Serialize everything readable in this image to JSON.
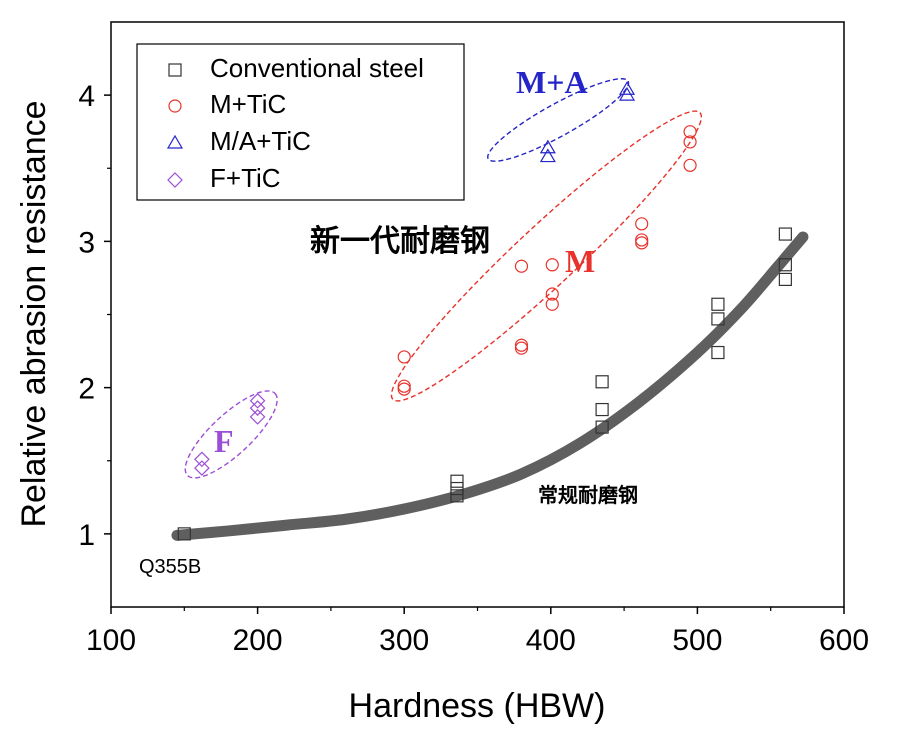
{
  "chart_data": {
    "type": "scatter",
    "xlabel": "Hardness (HBW)",
    "ylabel": "Relative abrasion resistance",
    "xlim": [
      100,
      600
    ],
    "ylim": [
      0.5,
      4.5
    ],
    "xticks": [
      100,
      200,
      300,
      400,
      500,
      600
    ],
    "yticks": [
      1,
      2,
      3,
      4
    ],
    "legend_position": "top-left",
    "series": [
      {
        "name": "Conventional steel",
        "marker": "square",
        "color": "#333333",
        "points": [
          [
            150,
            1.0
          ],
          [
            336,
            1.36
          ],
          [
            336,
            1.31
          ],
          [
            336,
            1.26
          ],
          [
            435,
            2.04
          ],
          [
            435,
            1.85
          ],
          [
            435,
            1.73
          ],
          [
            514,
            2.57
          ],
          [
            514,
            2.47
          ],
          [
            514,
            2.24
          ],
          [
            560,
            3.05
          ],
          [
            560,
            2.84
          ],
          [
            560,
            2.74
          ]
        ]
      },
      {
        "name": "M+TiC",
        "marker": "circle",
        "color": "#e8322b",
        "points": [
          [
            300,
            2.21
          ],
          [
            300,
            2.01
          ],
          [
            300,
            1.99
          ],
          [
            380,
            2.83
          ],
          [
            380,
            2.29
          ],
          [
            380,
            2.27
          ],
          [
            401,
            2.84
          ],
          [
            401,
            2.64
          ],
          [
            401,
            2.57
          ],
          [
            462,
            3.12
          ],
          [
            462,
            3.01
          ],
          [
            462,
            2.99
          ],
          [
            495,
            3.75
          ],
          [
            495,
            3.68
          ],
          [
            495,
            3.52
          ]
        ]
      },
      {
        "name": "M/A+TiC",
        "marker": "triangle",
        "color": "#2424c8",
        "points": [
          [
            398,
            3.64
          ],
          [
            398,
            3.58
          ],
          [
            452,
            4.04
          ],
          [
            452,
            4.0
          ]
        ]
      },
      {
        "name": "F+TiC",
        "marker": "diamond",
        "color": "#9b4fd6",
        "points": [
          [
            162,
            1.51
          ],
          [
            162,
            1.45
          ],
          [
            200,
            1.91
          ],
          [
            200,
            1.86
          ],
          [
            200,
            1.8
          ]
        ]
      }
    ],
    "trend_curve": {
      "color": "#5f5f5f",
      "points": [
        [
          145,
          0.99
        ],
        [
          180,
          1.02
        ],
        [
          220,
          1.06
        ],
        [
          260,
          1.1
        ],
        [
          300,
          1.17
        ],
        [
          340,
          1.27
        ],
        [
          380,
          1.41
        ],
        [
          420,
          1.62
        ],
        [
          460,
          1.9
        ],
        [
          500,
          2.24
        ],
        [
          530,
          2.54
        ],
        [
          555,
          2.83
        ],
        [
          572,
          3.03
        ]
      ]
    },
    "group_labels": [
      {
        "text": "M+A",
        "color": "#2424c8"
      },
      {
        "text": "M",
        "color": "#e8322b"
      },
      {
        "text": "F",
        "color": "#9b4fd6"
      }
    ],
    "annotations": {
      "new_steel": "新一代耐磨钢",
      "conventional_steel": "常规耐磨钢",
      "q355b": "Q355B"
    }
  }
}
